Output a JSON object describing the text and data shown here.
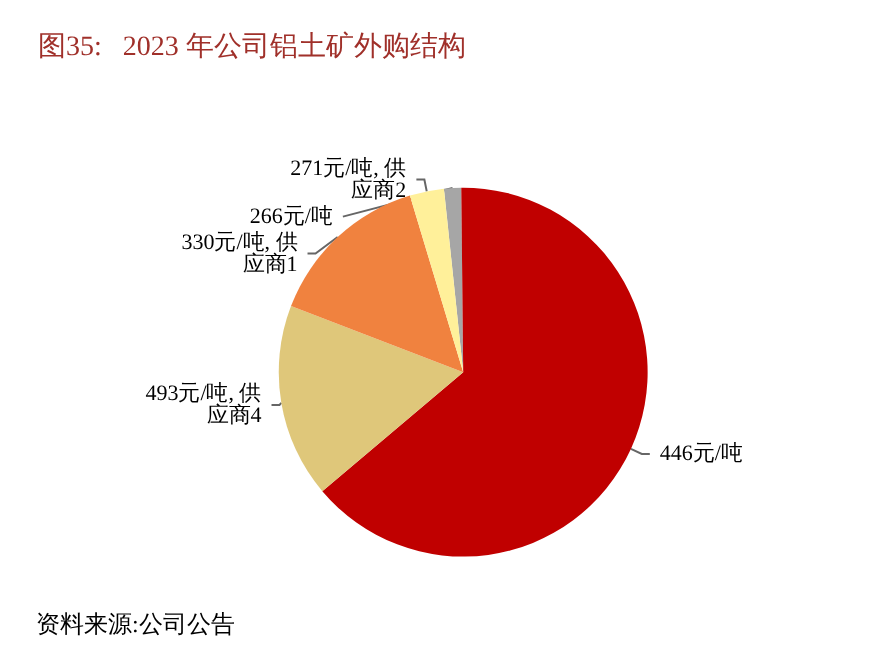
{
  "chart_data": {
    "type": "pie",
    "title": "图35:   2023 年公司铝土矿外购结构",
    "categories": [
      "266元/吨",
      "446元/吨",
      "493元/吨, 供应商4",
      "330元/吨, 供应商1",
      "271元/吨, 供应商2"
    ],
    "values": [
      1.5,
      64,
      17,
      14.5,
      3
    ],
    "colors": [
      "#a6a6a6",
      "#c00000",
      "#dfc77a",
      "#f0823f",
      "#fff09a"
    ],
    "legend": false,
    "annotations": [
      "资料来源:公司公告"
    ]
  }
}
